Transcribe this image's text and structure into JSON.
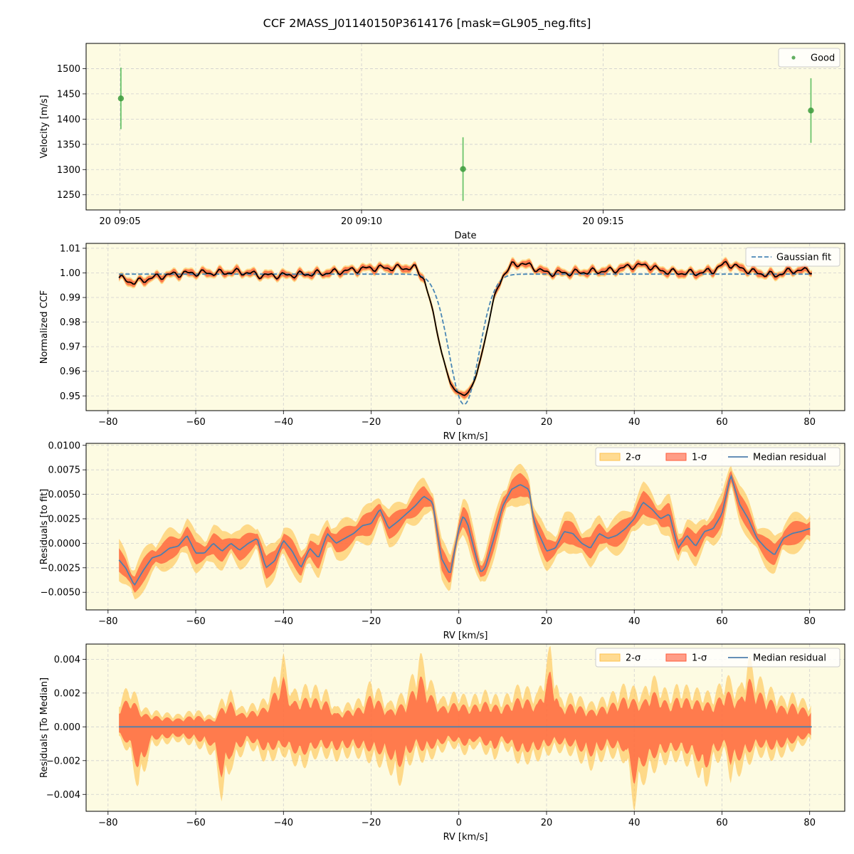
{
  "title": "CCF 2MASS_J01140150P3614176 [mask=GL905_neg.fits]",
  "colors": {
    "background": "#fdfbe2",
    "good": "#3a9a3a",
    "good_err": "#6cc46c",
    "ccf_line": "#000000",
    "fit_line": "#4a87b5",
    "sigma1": "#ff5b3a",
    "sigma2": "#ffc34d",
    "median": "#4f7fad",
    "grid": "#cfcfcf"
  },
  "chart_data": [
    {
      "type": "scatter",
      "ylabel": "Velocity [m/s]",
      "xlabel": "Date",
      "x_tick_labels": [
        "20 09:05",
        "20 09:10",
        "20 09:15"
      ],
      "x_ticks_minutes": [
        0,
        5,
        10
      ],
      "xlim_minutes": [
        -0.7,
        15.0
      ],
      "ylim": [
        1220,
        1550
      ],
      "yticks": [
        1250,
        1300,
        1350,
        1400,
        1450,
        1500
      ],
      "legend": [
        "Good"
      ],
      "legend_position": "top-right",
      "grid": true,
      "points": [
        {
          "t_minutes": 0.02,
          "v": 1441,
          "err": 61
        },
        {
          "t_minutes": 7.1,
          "v": 1301,
          "err": 63
        },
        {
          "t_minutes": 14.3,
          "v": 1417,
          "err": 64
        }
      ]
    },
    {
      "type": "line",
      "xlabel": "RV [km/s]",
      "ylabel": "Normalized CCF",
      "xlim": [
        -85,
        88
      ],
      "ylim": [
        0.944,
        1.012
      ],
      "xticks": [
        -80,
        -60,
        -40,
        -20,
        0,
        20,
        40,
        60,
        80
      ],
      "yticks": [
        0.95,
        0.96,
        0.97,
        0.98,
        0.99,
        1.0,
        1.01
      ],
      "ytick_labels": [
        "0.95",
        "0.96",
        "0.97",
        "0.98",
        "0.99",
        "1.00",
        "1.01"
      ],
      "legend": [
        "Gaussian fit"
      ],
      "legend_position": "top-right",
      "grid": true,
      "rv_range": [
        -77.5,
        80.5
      ],
      "gaussian": {
        "center": 1.2,
        "depth": 0.053,
        "sigma": 3.4,
        "baseline": 0.9995
      },
      "ccf_points": [
        [
          -77.5,
          0.998
        ],
        [
          -74,
          0.996
        ],
        [
          -70,
          0.998
        ],
        [
          -65,
          0.9995
        ],
        [
          -60,
          1.0
        ],
        [
          -55,
          1.0
        ],
        [
          -50,
          1.0005
        ],
        [
          -45,
          0.999
        ],
        [
          -40,
          0.999
        ],
        [
          -35,
          0.9995
        ],
        [
          -30,
          1.0
        ],
        [
          -25,
          1.001
        ],
        [
          -20,
          1.002
        ],
        [
          -15,
          1.002
        ],
        [
          -12,
          1.002
        ],
        [
          -10,
          1.002
        ],
        [
          -8,
          0.998
        ],
        [
          -6,
          0.985
        ],
        [
          -4,
          0.968
        ],
        [
          -2,
          0.955
        ],
        [
          0,
          0.951
        ],
        [
          1.2,
          0.95
        ],
        [
          2,
          0.951
        ],
        [
          4,
          0.958
        ],
        [
          6,
          0.973
        ],
        [
          8,
          0.99
        ],
        [
          10,
          0.999
        ],
        [
          12,
          1.003
        ],
        [
          14,
          1.004
        ],
        [
          16,
          1.003
        ],
        [
          20,
          1.0
        ],
        [
          25,
          1.0
        ],
        [
          30,
          1.0005
        ],
        [
          35,
          1.001
        ],
        [
          40,
          1.003
        ],
        [
          43,
          1.003
        ],
        [
          46,
          1.001
        ],
        [
          50,
          1.0
        ],
        [
          55,
          1.0
        ],
        [
          58,
          1.001
        ],
        [
          61,
          1.004
        ],
        [
          64,
          1.002
        ],
        [
          68,
          1.0
        ],
        [
          72,
          0.999
        ],
        [
          76,
          1.001
        ],
        [
          80.5,
          1.001
        ]
      ]
    },
    {
      "type": "area",
      "xlabel": "RV [km/s]",
      "ylabel": "Residuals [to fit]",
      "xlim": [
        -85,
        88
      ],
      "ylim": [
        -0.0068,
        0.0102
      ],
      "xticks": [
        -80,
        -60,
        -40,
        -20,
        0,
        20,
        40,
        60,
        80
      ],
      "yticks": [
        -0.005,
        -0.0025,
        0.0,
        0.0025,
        0.005,
        0.0075,
        0.01
      ],
      "ytick_labels": [
        "−0.0050",
        "−0.0025",
        "0.0000",
        "0.0025",
        "0.0050",
        "0.0075",
        "0.0100"
      ],
      "legend": [
        "2-σ",
        "1-σ",
        "Median residual"
      ],
      "legend_position": "top-right",
      "grid": true,
      "median_points": [
        [
          -77.5,
          -0.0017
        ],
        [
          -76,
          -0.0025
        ],
        [
          -74,
          -0.0043
        ],
        [
          -72,
          -0.0028
        ],
        [
          -70,
          -0.0015
        ],
        [
          -68,
          -0.0012
        ],
        [
          -66,
          -0.0005
        ],
        [
          -64,
          -0.0003
        ],
        [
          -62,
          0.0008
        ],
        [
          -60,
          -0.001
        ],
        [
          -58,
          -0.001
        ],
        [
          -56,
          0.0
        ],
        [
          -54,
          -0.0008
        ],
        [
          -52,
          0.0
        ],
        [
          -50,
          -0.0007
        ],
        [
          -48,
          0.0
        ],
        [
          -46,
          0.0005
        ],
        [
          -44,
          -0.0025
        ],
        [
          -42,
          -0.0018
        ],
        [
          -40,
          0.0003
        ],
        [
          -38,
          -0.0008
        ],
        [
          -36,
          -0.0025
        ],
        [
          -34,
          -0.0005
        ],
        [
          -32,
          -0.0015
        ],
        [
          -30,
          0.001
        ],
        [
          -28,
          0.0
        ],
        [
          -26,
          0.0005
        ],
        [
          -24,
          0.001
        ],
        [
          -22,
          0.0018
        ],
        [
          -20,
          0.002
        ],
        [
          -18,
          0.0035
        ],
        [
          -16,
          0.0015
        ],
        [
          -14,
          0.0022
        ],
        [
          -12,
          0.003
        ],
        [
          -10,
          0.0038
        ],
        [
          -8,
          0.0048
        ],
        [
          -6,
          0.0042
        ],
        [
          -4,
          -0.0015
        ],
        [
          -2,
          -0.0032
        ],
        [
          0,
          0.0015
        ],
        [
          1,
          0.0028
        ],
        [
          2,
          0.002
        ],
        [
          4,
          -0.0015
        ],
        [
          5,
          -0.003
        ],
        [
          6,
          -0.0025
        ],
        [
          8,
          0.0005
        ],
        [
          10,
          0.0038
        ],
        [
          12,
          0.0055
        ],
        [
          14,
          0.006
        ],
        [
          16,
          0.0055
        ],
        [
          17,
          0.0025
        ],
        [
          18,
          0.0012
        ],
        [
          20,
          -0.0008
        ],
        [
          22,
          -0.0005
        ],
        [
          24,
          0.0012
        ],
        [
          26,
          0.001
        ],
        [
          28,
          0.0
        ],
        [
          30,
          -0.0005
        ],
        [
          32,
          0.001
        ],
        [
          34,
          0.0005
        ],
        [
          36,
          0.0008
        ],
        [
          38,
          0.0015
        ],
        [
          40,
          0.0025
        ],
        [
          42,
          0.0042
        ],
        [
          44,
          0.0035
        ],
        [
          46,
          0.0025
        ],
        [
          48,
          0.003
        ],
        [
          50,
          -0.0005
        ],
        [
          52,
          0.0008
        ],
        [
          54,
          -0.0003
        ],
        [
          56,
          0.0012
        ],
        [
          58,
          0.0015
        ],
        [
          60,
          0.003
        ],
        [
          62,
          0.007
        ],
        [
          64,
          0.004
        ],
        [
          66,
          0.0025
        ],
        [
          68,
          0.0005
        ],
        [
          70,
          -0.0005
        ],
        [
          72,
          -0.0012
        ],
        [
          74,
          0.0005
        ],
        [
          76,
          0.001
        ],
        [
          78,
          0.0012
        ],
        [
          80,
          0.0015
        ]
      ]
    },
    {
      "type": "area",
      "xlabel": "RV [km/s]",
      "ylabel": "Residuals [To Median]",
      "xlim": [
        -85,
        88
      ],
      "ylim": [
        -0.005,
        0.0049
      ],
      "xticks": [
        -80,
        -60,
        -40,
        -20,
        0,
        20,
        40,
        60,
        80
      ],
      "yticks": [
        -0.004,
        -0.002,
        0.0,
        0.002,
        0.004
      ],
      "ytick_labels": [
        "−0.004",
        "−0.002",
        "0.000",
        "0.002",
        "0.004"
      ],
      "legend": [
        "2-σ",
        "1-σ",
        "Median residual"
      ],
      "legend_position": "top-right",
      "grid": true,
      "envelope_peaks": [
        [
          -77.5,
          0.0012
        ],
        [
          -75,
          0.0018
        ],
        [
          -72,
          0.0008
        ],
        [
          -68,
          0.0006
        ],
        [
          -64,
          0.0005
        ],
        [
          -60,
          0.0007
        ],
        [
          -56,
          0.0004
        ],
        [
          -54,
          0.0012
        ],
        [
          -52,
          0.0015
        ],
        [
          -50,
          0.0008
        ],
        [
          -46,
          0.001
        ],
        [
          -44,
          0.0012
        ],
        [
          -40,
          0.003
        ],
        [
          -38,
          0.0015
        ],
        [
          -34,
          0.0018
        ],
        [
          -30,
          0.0015
        ],
        [
          -28,
          0.0008
        ],
        [
          -22,
          0.0012
        ],
        [
          -20,
          0.002
        ],
        [
          -16,
          0.001
        ],
        [
          -12,
          0.0015
        ],
        [
          -10,
          0.0025
        ],
        [
          -9,
          0.0032
        ],
        [
          -6,
          0.0018
        ],
        [
          -4,
          0.0012
        ],
        [
          0,
          0.0015
        ],
        [
          2,
          0.0012
        ],
        [
          6,
          0.0015
        ],
        [
          10,
          0.0012
        ],
        [
          14,
          0.0018
        ],
        [
          18,
          0.0014
        ],
        [
          21,
          0.0035
        ],
        [
          23,
          0.0012
        ],
        [
          26,
          0.0014
        ],
        [
          30,
          0.001
        ],
        [
          34,
          0.0013
        ],
        [
          38,
          0.0018
        ],
        [
          42,
          0.0015
        ],
        [
          44,
          0.0022
        ],
        [
          48,
          0.0014
        ],
        [
          50,
          0.0018
        ],
        [
          54,
          0.0016
        ],
        [
          58,
          0.0014
        ],
        [
          61,
          0.0022
        ],
        [
          64,
          0.0016
        ],
        [
          66,
          0.003
        ],
        [
          68,
          0.0022
        ],
        [
          70,
          0.0018
        ],
        [
          74,
          0.0012
        ],
        [
          76,
          0.0014
        ],
        [
          80,
          0.001
        ]
      ],
      "envelope_troughs": [
        [
          -77.5,
          -0.0005
        ],
        [
          -75,
          -0.0012
        ],
        [
          -73,
          -0.0028
        ],
        [
          -70,
          -0.0008
        ],
        [
          -64,
          -0.0006
        ],
        [
          -60,
          -0.0008
        ],
        [
          -56,
          -0.0012
        ],
        [
          -54,
          -0.0032
        ],
        [
          -52,
          -0.0018
        ],
        [
          -48,
          -0.0008
        ],
        [
          -44,
          -0.0015
        ],
        [
          -40,
          -0.0012
        ],
        [
          -36,
          -0.0018
        ],
        [
          -32,
          -0.0012
        ],
        [
          -28,
          -0.0014
        ],
        [
          -24,
          -0.0012
        ],
        [
          -20,
          -0.0015
        ],
        [
          -16,
          -0.0018
        ],
        [
          -14,
          -0.0026
        ],
        [
          -10,
          -0.0012
        ],
        [
          -8,
          -0.0015
        ],
        [
          -5,
          -0.0012
        ],
        [
          -2,
          -0.0008
        ],
        [
          2,
          -0.0012
        ],
        [
          4,
          -0.0008
        ],
        [
          8,
          -0.0014
        ],
        [
          10,
          -0.0008
        ],
        [
          14,
          -0.0016
        ],
        [
          18,
          -0.0014
        ],
        [
          22,
          -0.001
        ],
        [
          26,
          -0.0012
        ],
        [
          30,
          -0.0018
        ],
        [
          34,
          -0.0012
        ],
        [
          38,
          -0.0015
        ],
        [
          40,
          -0.0035
        ],
        [
          42,
          -0.0024
        ],
        [
          46,
          -0.0016
        ],
        [
          50,
          -0.0014
        ],
        [
          54,
          -0.0018
        ],
        [
          56,
          -0.0028
        ],
        [
          58,
          -0.0016
        ],
        [
          61,
          -0.0012
        ],
        [
          62,
          -0.0024
        ],
        [
          65,
          -0.0018
        ],
        [
          68,
          -0.0012
        ],
        [
          72,
          -0.0014
        ],
        [
          76,
          -0.001
        ],
        [
          80,
          -0.0006
        ]
      ]
    }
  ]
}
